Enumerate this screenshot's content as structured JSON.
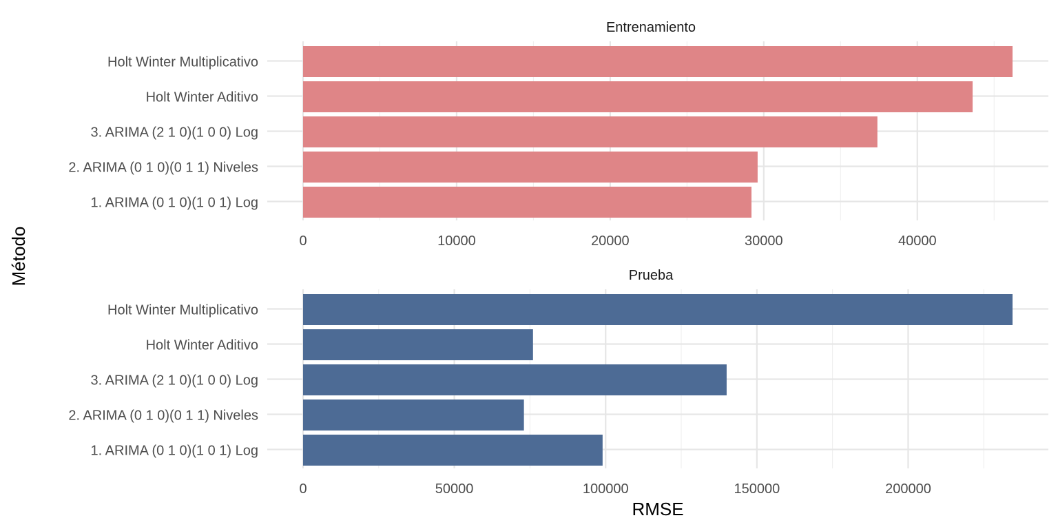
{
  "chart_data": {
    "type": "bar",
    "orientation": "horizontal",
    "xlabel": "RMSE",
    "ylabel": "Método",
    "categories": [
      "Holt Winter Multiplicativo",
      "Holt Winter Aditivo",
      "3. ARIMA (2 1 0)(1 0 0) Log",
      "2. ARIMA (0 1 0)(0 1 1) Niveles",
      "1. ARIMA (0 1 0)(1 0 1) Log"
    ],
    "panels": [
      {
        "title": "Entrenamiento",
        "color": "#df8587",
        "values": [
          46200,
          43600,
          37400,
          29600,
          29200
        ],
        "xlim": [
          0,
          46200
        ],
        "xticks": [
          0,
          10000,
          20000,
          30000,
          40000
        ],
        "xtick_labels": [
          "0",
          "10000",
          "20000",
          "30000",
          "40000"
        ]
      },
      {
        "title": "Prueba",
        "color": "#4d6b95",
        "values": [
          234500,
          76000,
          140000,
          73000,
          99000
        ],
        "xlim": [
          0,
          234500
        ],
        "xticks": [
          0,
          50000,
          100000,
          150000,
          200000
        ],
        "xtick_labels": [
          "0",
          "50000",
          "100000",
          "150000",
          "200000"
        ]
      }
    ],
    "grid": true,
    "legend": "none"
  }
}
